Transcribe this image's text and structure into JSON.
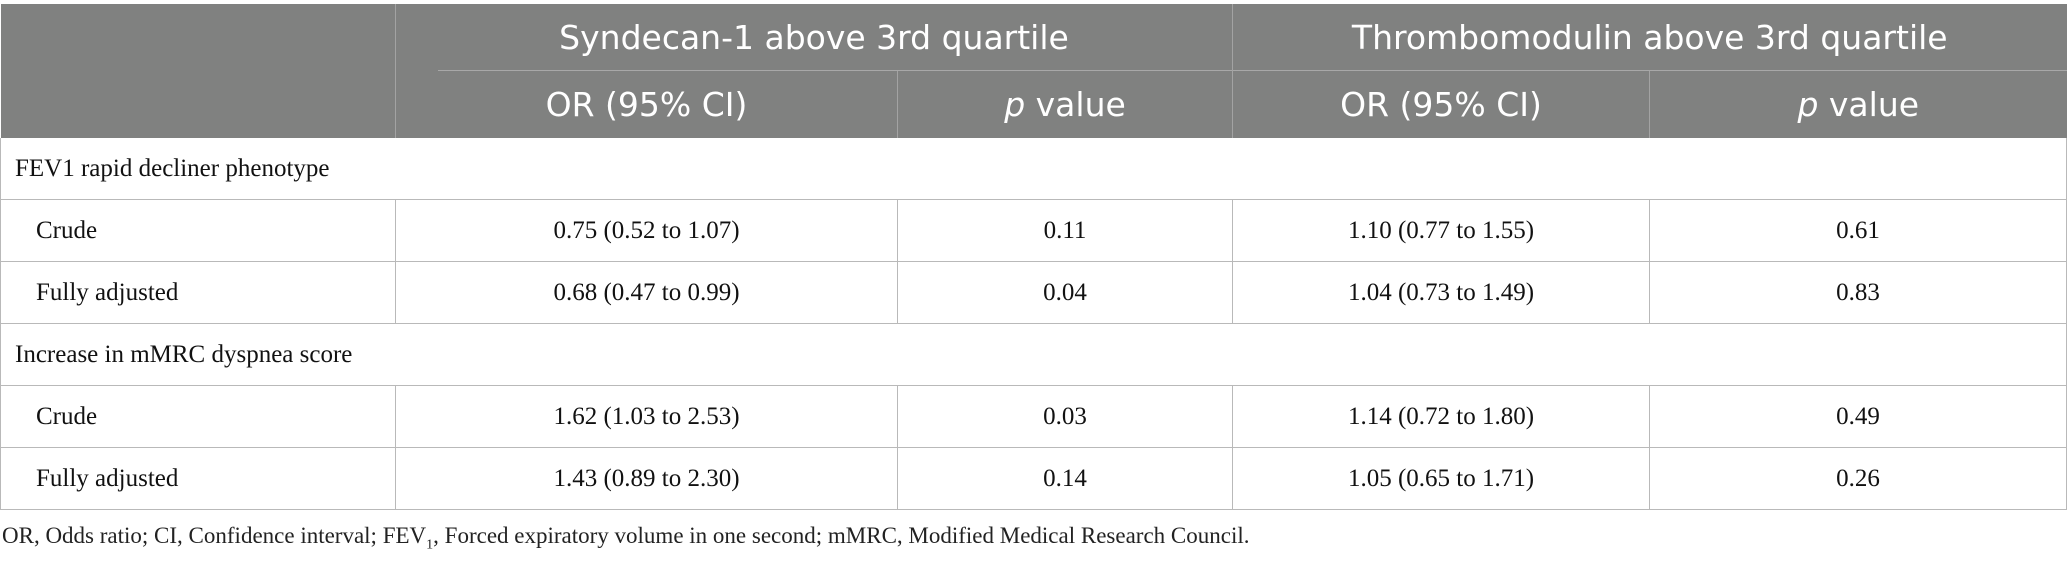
{
  "header": {
    "group1": "Syndecan-1 above 3rd quartile",
    "group2": "Thrombomodulin above 3rd quartile",
    "or_label": "OR (95% CI)",
    "p_italic": "p",
    "p_rest": " value"
  },
  "sections": [
    {
      "title": "FEV1 rapid decliner phenotype",
      "rows": [
        {
          "label": "Crude",
          "s_or": "0.75 (0.52 to 1.07)",
          "s_p": "0.11",
          "t_or": "1.10 (0.77 to 1.55)",
          "t_p": "0.61"
        },
        {
          "label": "Fully adjusted",
          "s_or": "0.68 (0.47 to 0.99)",
          "s_p": "0.04",
          "t_or": "1.04 (0.73 to 1.49)",
          "t_p": "0.83"
        }
      ]
    },
    {
      "title": "Increase in mMRC dyspnea score",
      "rows": [
        {
          "label": "Crude",
          "s_or": "1.62 (1.03 to 2.53)",
          "s_p": "0.03",
          "t_or": "1.14 (0.72 to 1.80)",
          "t_p": "0.49"
        },
        {
          "label": "Fully adjusted",
          "s_or": "1.43 (0.89 to 2.30)",
          "s_p": "0.14",
          "t_or": "1.05 (0.65 to 1.71)",
          "t_p": "0.26"
        }
      ]
    }
  ],
  "footnote": {
    "part1": "OR, Odds ratio; CI, Confidence interval; FEV",
    "sub": "1",
    "part2": ", Forced expiratory volume in one second; mMRC, Modified Medical Research Council."
  }
}
